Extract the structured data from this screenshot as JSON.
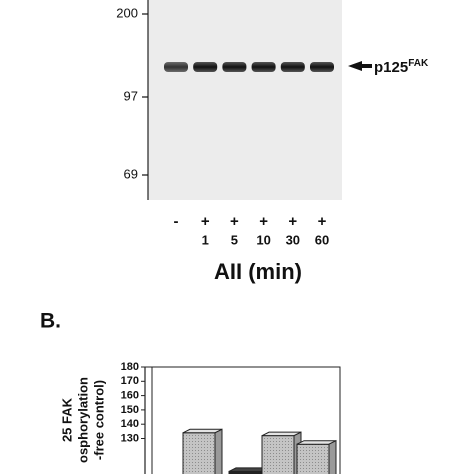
{
  "blot": {
    "markers": [
      "200",
      "97",
      "69"
    ],
    "band_label": "p125",
    "band_label_sup": "FAK",
    "lane_signs": [
      "-",
      "+",
      "+",
      "+",
      "+",
      "+"
    ],
    "lane_times": [
      null,
      "1",
      "5",
      "10",
      "30",
      "60"
    ],
    "xlabel": "AII (min)"
  },
  "panel_b": {
    "label": "B.",
    "chart_data": {
      "type": "bar",
      "ylabel_lines": [
        "25 FAK",
        "osphorylation",
        "-free control)"
      ],
      "values": [
        134,
        107,
        132,
        126
      ],
      "colors": [
        "#b4b4b4",
        "#222222",
        "#b4b4b4",
        "#b4b4b4"
      ],
      "ylim": [
        100,
        180
      ],
      "yticks": [
        130,
        140,
        150,
        160,
        170,
        180
      ]
    }
  }
}
